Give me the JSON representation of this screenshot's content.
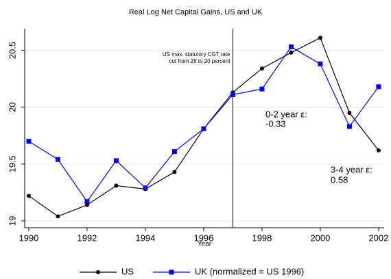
{
  "chart_data": {
    "type": "line",
    "title": "Real Log Net Capital Gains, US and UK",
    "x_label": "Year",
    "x": [
      1990,
      1991,
      1992,
      1993,
      1994,
      1995,
      1996,
      1997,
      1998,
      1999,
      2000,
      2001,
      2002
    ],
    "series": [
      {
        "name": "US",
        "color": "#000000",
        "marker": "circle",
        "values": [
          19.22,
          19.04,
          19.14,
          19.31,
          19.28,
          19.43,
          19.81,
          20.13,
          20.34,
          20.48,
          20.61,
          19.95,
          19.62
        ]
      },
      {
        "name": "UK (normalized = US 1996)",
        "color": "#0000ff",
        "marker": "square",
        "values": [
          19.7,
          19.54,
          19.17,
          19.53,
          19.29,
          19.61,
          19.81,
          20.11,
          20.16,
          20.53,
          20.38,
          19.83,
          20.18
        ]
      }
    ],
    "xlim": [
      1989.86,
      2002.19
    ],
    "xticks": [
      1990,
      1992,
      1994,
      1996,
      1998,
      2000,
      2002
    ],
    "ylim": [
      18.94,
      20.69
    ],
    "yticks": [
      19,
      19.5,
      20,
      20.5
    ],
    "grid": true,
    "reference_line": 1997,
    "annotations": [
      [
        "US max. statutory CGT rate",
        "cut from 28 to 20 percent"
      ],
      [
        "0-2 year ε:",
        "-0.33"
      ],
      [
        "3-4 year ε:",
        "0.58"
      ]
    ],
    "legend": "bottom"
  }
}
